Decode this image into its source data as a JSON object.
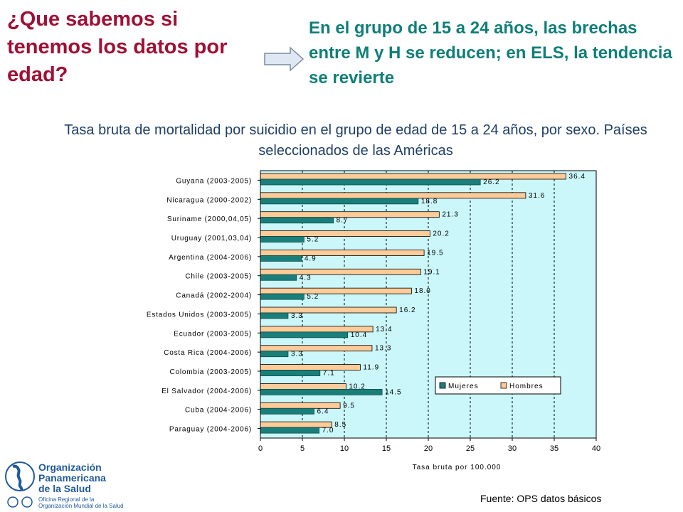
{
  "header": {
    "title": "¿Que sabemos si tenemos los datos por edad?",
    "headline": "En el grupo de 15 a 24 años, las brechas entre M y H se reducen; en ELS, la tendencia se revierte"
  },
  "chart_data": {
    "type": "bar",
    "orientation": "horizontal",
    "title": "Tasa bruta de mortalidad por suicidio en el grupo de edad de 15 a 24 años, por sexo. Países seleccionados de las Américas",
    "xlabel": "Tasa bruta por 100.000",
    "xlim": [
      0,
      40
    ],
    "xticks": [
      0,
      5,
      10,
      15,
      20,
      25,
      30,
      35,
      40
    ],
    "categories": [
      "Guyana (2003-2005)",
      "Nicaragua (2000-2002)",
      "Suriname (2000,04,05)",
      "Uruguay (2001,03,04)",
      "Argentina (2004-2006)",
      "Chile (2003-2005)",
      "Canadá (2002-2004)",
      "Estados Unidos (2003-2005)",
      "Ecuador (2003-2005)",
      "Costa Rica (2004-2006)",
      "Colombia (2003-2005)",
      "El Salvador (2004-2006)",
      "Cuba (2004-2006)",
      "Paraguay (2004-2006)"
    ],
    "series": [
      {
        "name": "Hombres",
        "color": "#ffcc99",
        "values": [
          36.4,
          31.6,
          21.3,
          20.2,
          19.5,
          19.1,
          18.0,
          16.2,
          13.4,
          13.3,
          11.9,
          10.2,
          9.5,
          8.5
        ],
        "labels": [
          "36.4",
          "31.6",
          "21.3",
          "20.2",
          "19.5",
          "19.1",
          "18.0",
          "16.2",
          "13.4",
          "13.3",
          "11.9",
          "10.2",
          "9.5",
          "8.5"
        ]
      },
      {
        "name": "Mujeres",
        "color": "#1a7f7a",
        "values": [
          26.2,
          18.8,
          8.7,
          5.2,
          4.9,
          4.3,
          5.2,
          3.3,
          10.4,
          3.3,
          7.1,
          14.5,
          6.4,
          7.0
        ],
        "labels": [
          "26.2",
          "18.8",
          "8.7",
          "5.2",
          "4.9",
          "4.3",
          "5.2",
          "3.3",
          "10.4",
          "3.3",
          "7.1",
          "14.5",
          "6.4",
          "7.0"
        ]
      }
    ],
    "legend": [
      "Mujeres",
      "Hombres"
    ],
    "legend_position": "right",
    "plot_background": "#ccf7fa",
    "grid": "vertical dashed"
  },
  "footer": {
    "source": "Fuente: OPS datos básicos",
    "logo_lines": [
      "Organización",
      "Panamericana",
      "de la Salud"
    ],
    "logo_sub_lines": [
      "Oficina Regional de la",
      "Organización Mundial de la Salud"
    ]
  }
}
